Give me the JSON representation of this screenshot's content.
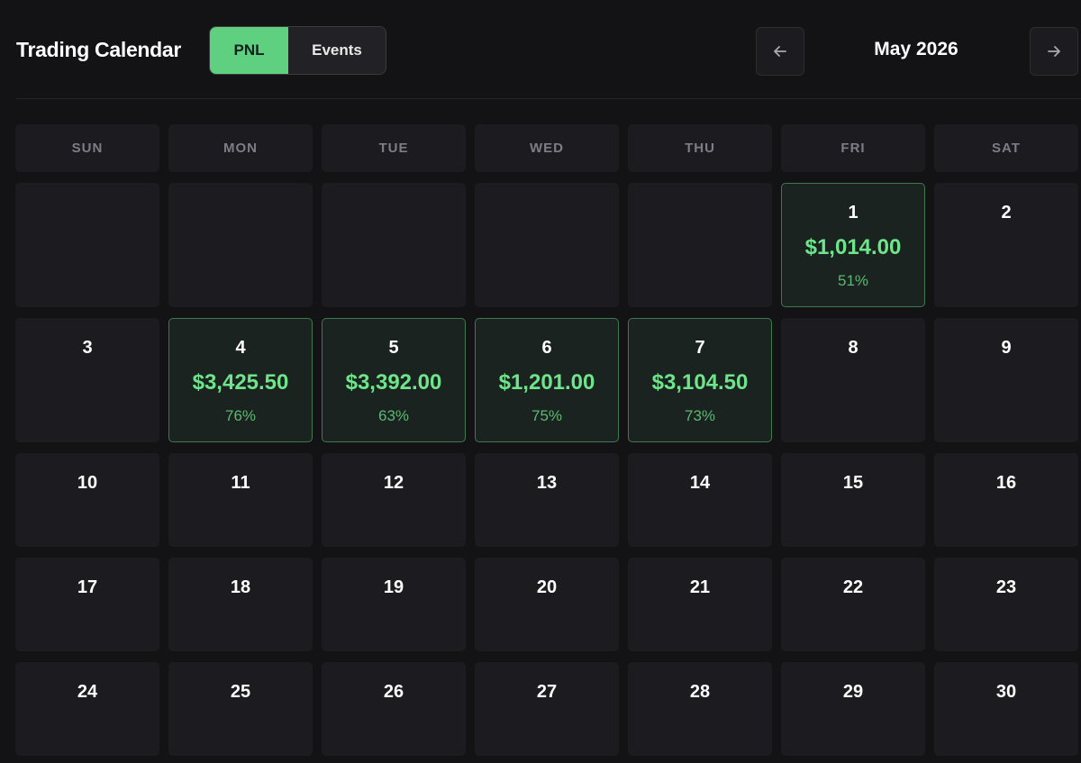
{
  "header": {
    "title": "Trading Calendar",
    "tabs": [
      "PNL",
      "Events"
    ],
    "month": "May 2026"
  },
  "calendar": {
    "weekdays": [
      "SUN",
      "MON",
      "TUE",
      "WED",
      "THU",
      "FRI",
      "SAT"
    ],
    "weeks": [
      [
        null,
        null,
        null,
        null,
        null,
        {
          "day": 1,
          "pnl": "$1,014.00",
          "pct": "51%"
        },
        {
          "day": 2
        }
      ],
      [
        {
          "day": 3
        },
        {
          "day": 4,
          "pnl": "$3,425.50",
          "pct": "76%"
        },
        {
          "day": 5,
          "pnl": "$3,392.00",
          "pct": "63%"
        },
        {
          "day": 6,
          "pnl": "$1,201.00",
          "pct": "75%"
        },
        {
          "day": 7,
          "pnl": "$3,104.50",
          "pct": "73%"
        },
        {
          "day": 8
        },
        {
          "day": 9
        }
      ],
      [
        {
          "day": 10
        },
        {
          "day": 11
        },
        {
          "day": 12
        },
        {
          "day": 13
        },
        {
          "day": 14
        },
        {
          "day": 15
        },
        {
          "day": 16
        }
      ],
      [
        {
          "day": 17
        },
        {
          "day": 18
        },
        {
          "day": 19
        },
        {
          "day": 20
        },
        {
          "day": 21
        },
        {
          "day": 22
        },
        {
          "day": 23
        }
      ],
      [
        {
          "day": 24
        },
        {
          "day": 25
        },
        {
          "day": 26
        },
        {
          "day": 27
        },
        {
          "day": 28
        },
        {
          "day": 29
        },
        {
          "day": 30
        }
      ]
    ]
  }
}
